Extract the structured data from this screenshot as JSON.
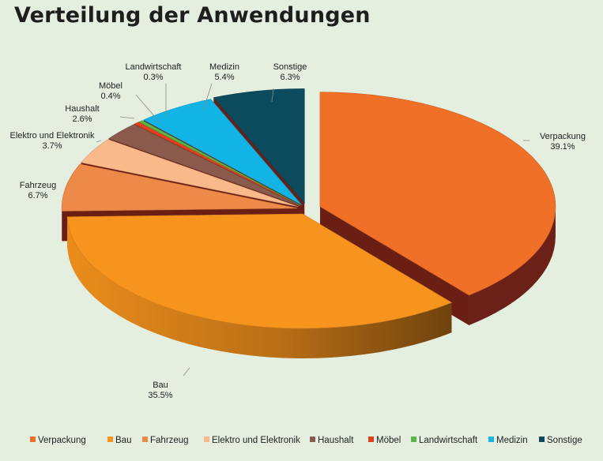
{
  "chart_data": {
    "type": "pie",
    "title": "Verteilung der Anwendungen",
    "categories": [
      "Verpackung",
      "Bau",
      "Fahrzeug",
      "Elektro und Elektronik",
      "Haushalt",
      "Möbel",
      "Landwirtschaft",
      "Medizin",
      "Sonstige"
    ],
    "values": [
      39.1,
      35.5,
      6.7,
      3.7,
      2.6,
      0.4,
      0.3,
      5.4,
      6.3
    ],
    "value_labels": [
      "39.1%",
      "35.5%",
      "6.7%",
      "3.7%",
      "2.6%",
      "0.4%",
      "0.3%",
      "5.4%",
      "6.3%"
    ],
    "colors": [
      "#f07028",
      "#f7941d",
      "#ee8a48",
      "#f9b98a",
      "#8a5a4c",
      "#e2401c",
      "#58b848",
      "#12b4e6",
      "#0c4a5e"
    ],
    "legend": {
      "position": "bottom"
    },
    "style": "3d-exploded"
  }
}
